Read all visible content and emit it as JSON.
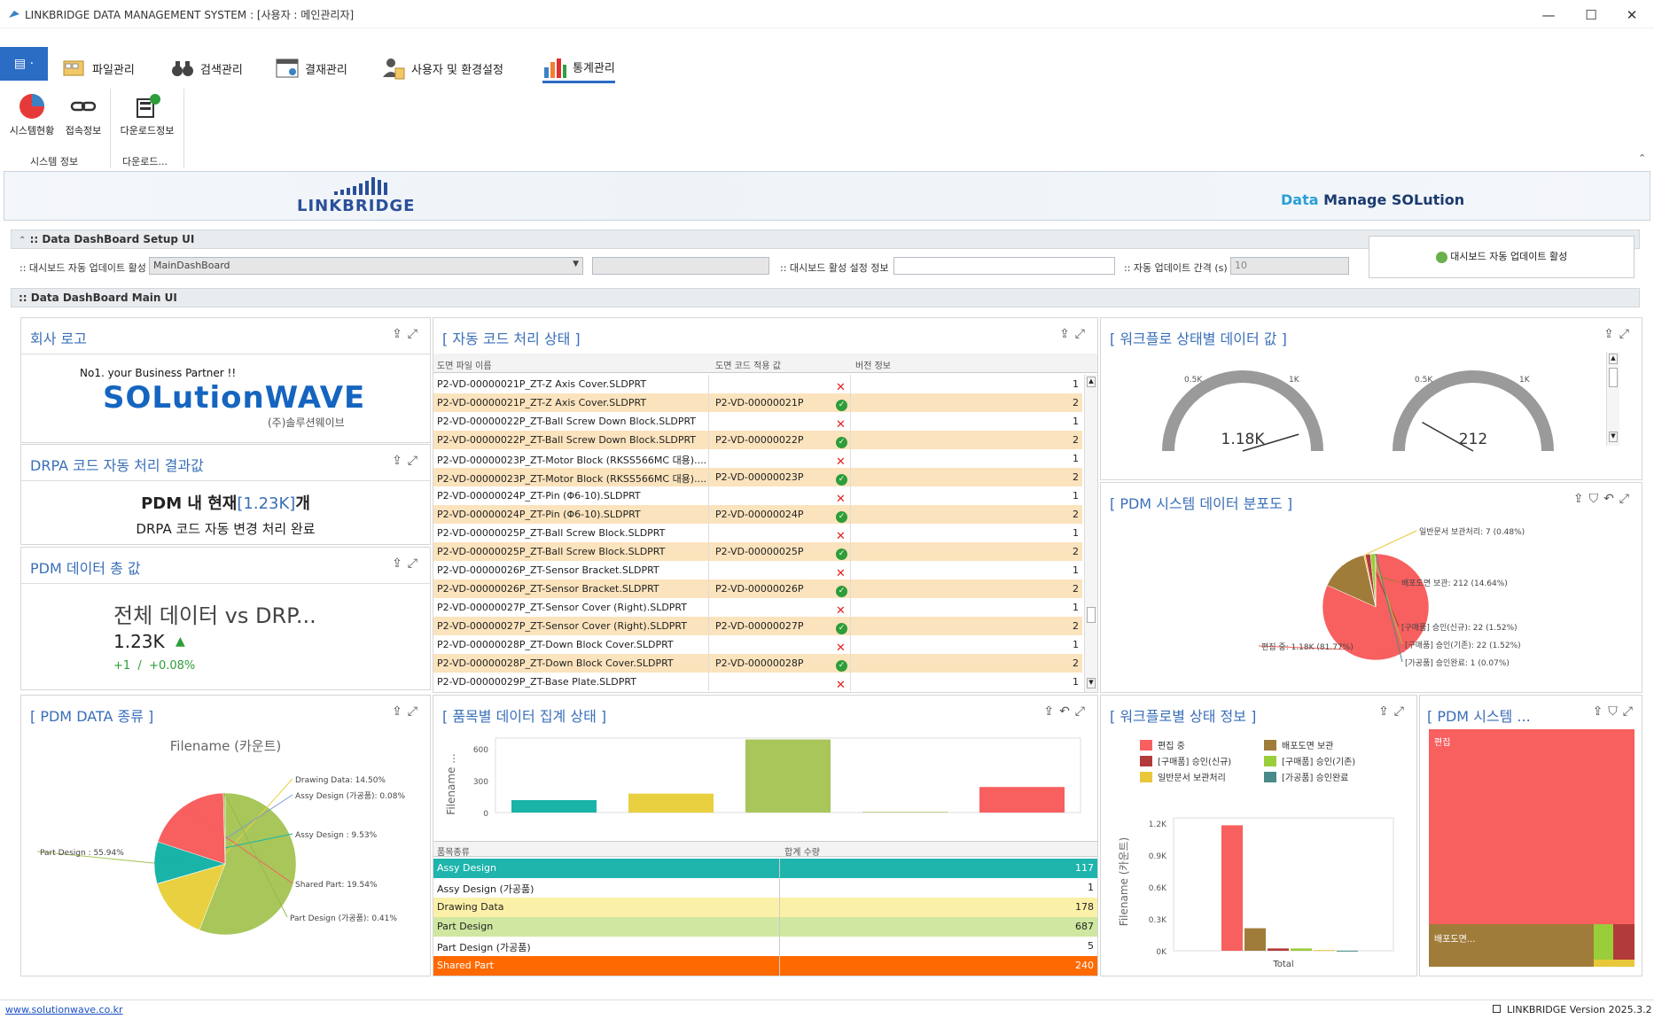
{
  "window": {
    "title": "LINKBRIDGE DATA MANAGEMENT SYSTEM : [사용자 : 메인관리자]"
  },
  "ribbon": {
    "file_button": "▤ ·",
    "tabs": [
      "파일관리",
      "검색관리",
      "결재관리",
      "사용자 및 환경설정",
      "통계관리"
    ],
    "buttons": [
      "시스템현황",
      "접속정보",
      "다운로드정보"
    ],
    "groups": [
      "시스템 정보",
      "다운로드..."
    ]
  },
  "banner": {
    "logo": "LINKBRIDGE",
    "tag_accent": "Data",
    "tag_rest": "Manage SOLution"
  },
  "setup": {
    "section_title": ":: Data DashBoard Setup UI",
    "auto_update_label": ":: 대시보드 자동 업데이트 활성",
    "auto_update_value": "MainDashBoard",
    "info_label": ":: 대시보드 활성 설정 정보",
    "interval_label": ":: 자동 업데이트 간격 (s)",
    "interval_value": "10",
    "activate_button": "대시보드 자동 업데이트 활성"
  },
  "main": {
    "section_title": ":: Data DashBoard Main UI"
  },
  "logo_panel": {
    "title": "회사 로고",
    "tagline": "No1. your Business Partner !!",
    "brand": "SOLutionWAVE",
    "korean": "(주)솔루션웨이브"
  },
  "drpa_panel": {
    "title": "DRPA 코드 자동 처리 결과값",
    "line1_a": "PDM 내 현재",
    "line1_b": "[1.23K]",
    "line1_c": "개",
    "line2": "DRPA 코드 자동 변경 처리 완료"
  },
  "total_panel": {
    "title": "PDM 데이터 총 값",
    "heading": "전체 데이터 vs DRP...",
    "value": "1.23K",
    "delta": "+1  /  +0.08%"
  },
  "auto_code_panel": {
    "title": "[ 자동 코드 처리 상태 ]",
    "columns": [
      "도면 파일 이름",
      "도면 코드 적용 값",
      "버전 정보"
    ],
    "rows": [
      {
        "file": "P2-VD-00000021P_ZT-Z Axis Cover.SLDPRT",
        "code": "",
        "ok": false,
        "ver": "1"
      },
      {
        "file": "P2-VD-00000021P_ZT-Z Axis Cover.SLDPRT",
        "code": "P2-VD-00000021P",
        "ok": true,
        "ver": "2"
      },
      {
        "file": "P2-VD-00000022P_ZT-Ball Screw Down Block.SLDPRT",
        "code": "",
        "ok": false,
        "ver": "1"
      },
      {
        "file": "P2-VD-00000022P_ZT-Ball Screw Down Block.SLDPRT",
        "code": "P2-VD-00000022P",
        "ok": true,
        "ver": "2"
      },
      {
        "file": "P2-VD-00000023P_ZT-Motor Block (RKSS566MC 대용)....",
        "code": "",
        "ok": false,
        "ver": "1"
      },
      {
        "file": "P2-VD-00000023P_ZT-Motor Block (RKSS566MC 대용)....",
        "code": "P2-VD-00000023P",
        "ok": true,
        "ver": "2"
      },
      {
        "file": "P2-VD-00000024P_ZT-Pin (Φ6-10).SLDPRT",
        "code": "",
        "ok": false,
        "ver": "1"
      },
      {
        "file": "P2-VD-00000024P_ZT-Pin (Φ6-10).SLDPRT",
        "code": "P2-VD-00000024P",
        "ok": true,
        "ver": "2"
      },
      {
        "file": "P2-VD-00000025P_ZT-Ball Screw Block.SLDPRT",
        "code": "",
        "ok": false,
        "ver": "1"
      },
      {
        "file": "P2-VD-00000025P_ZT-Ball Screw Block.SLDPRT",
        "code": "P2-VD-00000025P",
        "ok": true,
        "ver": "2"
      },
      {
        "file": "P2-VD-00000026P_ZT-Sensor Bracket.SLDPRT",
        "code": "",
        "ok": false,
        "ver": "1"
      },
      {
        "file": "P2-VD-00000026P_ZT-Sensor Bracket.SLDPRT",
        "code": "P2-VD-00000026P",
        "ok": true,
        "ver": "2"
      },
      {
        "file": "P2-VD-00000027P_ZT-Sensor Cover (Right).SLDPRT",
        "code": "",
        "ok": false,
        "ver": "1"
      },
      {
        "file": "P2-VD-00000027P_ZT-Sensor Cover (Right).SLDPRT",
        "code": "P2-VD-00000027P",
        "ok": true,
        "ver": "2"
      },
      {
        "file": "P2-VD-00000028P_ZT-Down Block Cover.SLDPRT",
        "code": "",
        "ok": false,
        "ver": "1"
      },
      {
        "file": "P2-VD-00000028P_ZT-Down Block Cover.SLDPRT",
        "code": "P2-VD-00000028P",
        "ok": true,
        "ver": "2"
      },
      {
        "file": "P2-VD-00000029P_ZT-Base Plate.SLDPRT",
        "code": "",
        "ok": false,
        "ver": "1"
      }
    ]
  },
  "gauge_panel": {
    "title": "[ 워크플로 상태별 데이터 값 ]",
    "gauges": [
      {
        "label": "1.18K",
        "value": 1180,
        "ticks": [
          "0.5K",
          "1K"
        ]
      },
      {
        "label": "212",
        "value": 212,
        "ticks": [
          "0.5K",
          "1K"
        ]
      }
    ]
  },
  "dist_panel": {
    "title": "[ PDM 시스템 데이터 분포도 ]"
  },
  "type_panel": {
    "title": "[ PDM DATA 종류 ]",
    "chart_title": "Filename (카운트)"
  },
  "item_panel": {
    "title": "[ 품목별 데이터 집계 상태 ]",
    "ylabel": "Filename ...",
    "columns": [
      "품목종류",
      "합계 수량"
    ],
    "rows": [
      {
        "name": "Assy Design",
        "qty": "117",
        "color": "#1fb5ad",
        "dark": true
      },
      {
        "name": "Assy Design  (가공품)",
        "qty": "1",
        "color": "#ffffff",
        "dark": false
      },
      {
        "name": "Drawing Data",
        "qty": "178",
        "color": "#fbf0a8",
        "dark": false
      },
      {
        "name": "Part Design",
        "qty": "687",
        "color": "#cfe7a0",
        "dark": false
      },
      {
        "name": "Part Design  (가공품)",
        "qty": "5",
        "color": "#ffffff",
        "dark": false
      },
      {
        "name": "Shared Part",
        "qty": "240",
        "color": "#ff6a00",
        "dark": true
      }
    ]
  },
  "wf_panel": {
    "title": "[ 워크플로별 상태 정보 ]",
    "legend": [
      "편집 중",
      "배포도면 보관",
      "[구매품] 승인(신규)",
      "[구매품] 승인(기존)",
      "일반문서 보관처리",
      "[가공품] 승인완료"
    ],
    "ylabel": "Filename (카운트)",
    "xlabel": "Total"
  },
  "tree_panel": {
    "title": "[ PDM 시스템 ...",
    "label_big": "편집",
    "label_small": "배포도면..."
  },
  "status": {
    "link": "www.solutionwave.co.kr",
    "version": "LINKBRIDGE Version 2025.3.2"
  },
  "chart_data": [
    {
      "type": "pie",
      "title": "[ PDM 시스템 데이터 분포도 ]",
      "labels": [
        "편집 중: 1.18K (81.77%)",
        "배포도면 보관: 212 (14.64%)",
        "일반문서 보관처리: 7 (0.48%)",
        "[구매품] 승인(신규): 22 (1.52%)",
        "[구매품] 승인(기존): 22 (1.52%)",
        "[가공품] 승인완료: 1 (0.07%)"
      ],
      "values": [
        1180,
        212,
        7,
        22,
        22,
        1
      ],
      "colors": [
        "#f85f5f",
        "#a07c3a",
        "#e8c83a",
        "#b33a3a",
        "#9acd3a",
        "#4a8a8a"
      ]
    },
    {
      "type": "pie",
      "title": "Filename (카운트)",
      "labels": [
        "Part Design : 55.94%",
        "Drawing Data: 14.50%",
        "Assy Design (가공품): 0.08%",
        "Assy Design : 9.53%",
        "Shared Part: 19.54%",
        "Part Design (가공품): 0.41%"
      ],
      "values": [
        55.94,
        14.5,
        0.08,
        9.53,
        19.54,
        0.41
      ],
      "colors": [
        "#a8c65a",
        "#e8d040",
        "#7a9ad0",
        "#19b3a8",
        "#f85f5f",
        "#98b848"
      ]
    },
    {
      "type": "bar",
      "title": "[ 품목별 데이터 집계 상태 ]",
      "categories": [
        "Assy Design",
        "Drawing Data",
        "Part Design",
        "Part Design (가공품)",
        "Shared Part"
      ],
      "values": [
        117,
        178,
        687,
        5,
        240
      ],
      "colors": [
        "#19b3a8",
        "#e8d040",
        "#a8c65a",
        "#98b848",
        "#f85f5f"
      ],
      "ylabel": "Filename ...",
      "yticks": [
        "0",
        "300",
        "600"
      ],
      "ylim": [
        0,
        700
      ]
    },
    {
      "type": "bar",
      "title": "[ 워크플로별 상태 정보 ]",
      "categories": [
        "Total"
      ],
      "series": [
        {
          "name": "편집 중",
          "values": [
            1180
          ],
          "color": "#f85f5f"
        },
        {
          "name": "배포도면 보관",
          "values": [
            212
          ],
          "color": "#a07c3a"
        },
        {
          "name": "[구매품] 승인(신규)",
          "values": [
            22
          ],
          "color": "#b33a3a"
        },
        {
          "name": "[구매품] 승인(기존)",
          "values": [
            22
          ],
          "color": "#9acd3a"
        },
        {
          "name": "일반문서 보관처리",
          "values": [
            7
          ],
          "color": "#e8c83a"
        },
        {
          "name": "[가공품] 승인완료",
          "values": [
            1
          ],
          "color": "#4a8a8a"
        }
      ],
      "ylabel": "Filename (카운트)",
      "yticks": [
        "0K",
        "0.3K",
        "0.6K",
        "0.9K",
        "1.2K"
      ],
      "ylim": [
        0,
        1200
      ]
    }
  ]
}
